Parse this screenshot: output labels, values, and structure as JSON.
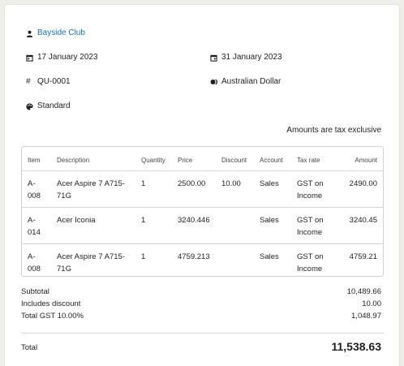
{
  "contact": {
    "name": "Bayside Club",
    "icon": "person-icon"
  },
  "dates": {
    "issue_date": "17 January 2023",
    "expiry_date": "31 January 2023"
  },
  "quote": {
    "number": "QU-0001",
    "currency": "Australian Dollar",
    "theme": "Standard"
  },
  "tax_note": "Amounts are tax exclusive",
  "table": {
    "headers": {
      "item": "Item",
      "description": "Description",
      "quantity": "Quantity",
      "price": "Price",
      "discount": "Discount",
      "account": "Account",
      "tax_rate": "Tax rate",
      "amount": "Amount"
    },
    "rows": [
      {
        "item_1": "A-",
        "item_2": "008",
        "desc_1": "Acer Aspire 7 A715-",
        "desc_2": "71G",
        "quantity": "1",
        "price": "2500.00",
        "discount": "10.00",
        "account": "Sales",
        "tax_1": "GST on",
        "tax_2": "Income",
        "amount": "2490.00"
      },
      {
        "item_1": "A-",
        "item_2": "014",
        "desc_1": "Acer Iconia",
        "desc_2": "",
        "quantity": "1",
        "price": "3240.446",
        "discount": "",
        "account": "Sales",
        "tax_1": "GST on",
        "tax_2": "Income",
        "amount": "3240.45"
      },
      {
        "item_1": "A-",
        "item_2": "008",
        "desc_1": "Acer Aspire 7 A715-",
        "desc_2": "71G",
        "quantity": "1",
        "price": "4759.213",
        "discount": "",
        "account": "Sales",
        "tax_1": "GST on",
        "tax_2": "Income",
        "amount": "4759.21"
      }
    ]
  },
  "summary": {
    "subtotal_label": "Subtotal",
    "subtotal": "10,489.66",
    "discount_label": "Includes discount",
    "discount": "10.00",
    "gst_label": "Total GST 10.00%",
    "gst": "1,048.97",
    "total_label": "Total",
    "total": "11,538.63"
  },
  "colors": {
    "link": "#1a6fc4",
    "background": "#efeee9",
    "border": "#cfd2d6"
  }
}
